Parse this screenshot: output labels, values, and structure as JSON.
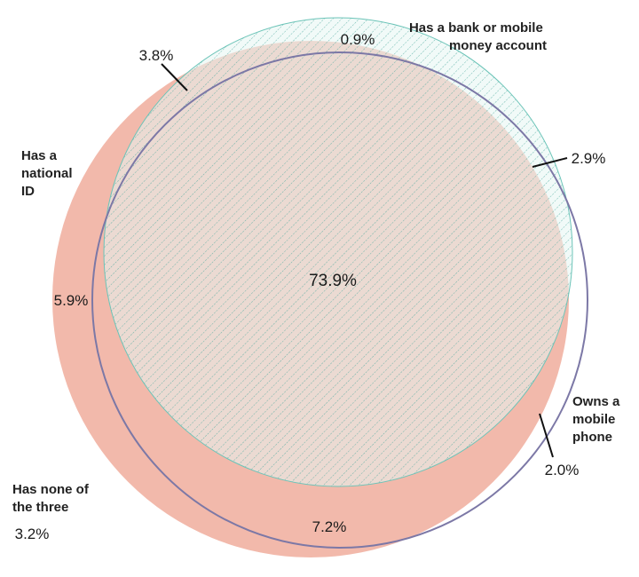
{
  "sets": {
    "national_id": {
      "label_lines": [
        "Has a",
        "national",
        "ID"
      ],
      "color": "#f2b9ab"
    },
    "account": {
      "label_lines": [
        "Has a bank or mobile",
        "money account"
      ],
      "color": "#6cc4b8"
    },
    "phone": {
      "label_lines": [
        "Owns a",
        "mobile",
        "phone"
      ],
      "color": "#7c78a6"
    },
    "none": {
      "label_lines": [
        "Has none of",
        "the three"
      ]
    }
  },
  "regions": {
    "all_three": "73.9%",
    "id_and_phone_only": "7.2%",
    "id_only": "5.9%",
    "id_and_account_only": "3.8%",
    "account_and_phone_only": "2.9%",
    "phone_only": "2.0%",
    "account_only": "0.9%",
    "none": "3.2%"
  }
}
